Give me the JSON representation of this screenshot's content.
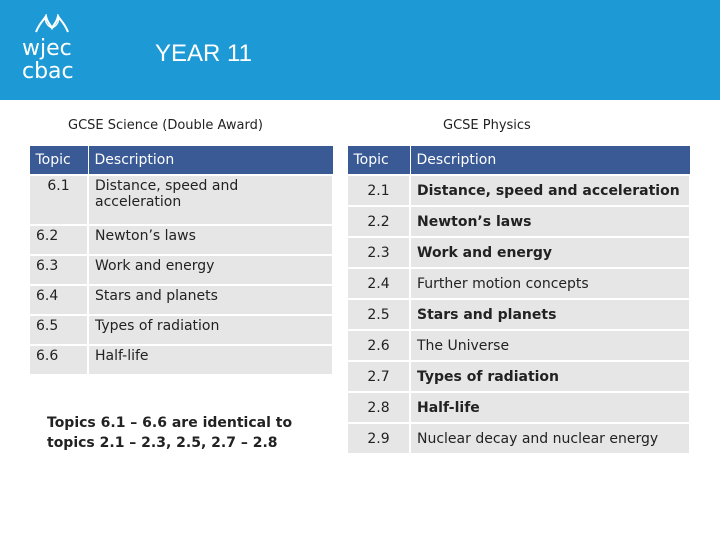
{
  "header": {
    "logo_line1": "wjec",
    "logo_line2": "cbac",
    "title": "YEAR 11",
    "colors": {
      "banner": "#1d9ad6",
      "table_header": "#3a5a95",
      "row_bg": "#e6e6e6"
    }
  },
  "science": {
    "heading": "GCSE Science (Double Award)",
    "col_topic": "Topic",
    "col_desc": "Description",
    "rows": [
      {
        "topic": "6.1",
        "desc": "Distance, speed and acceleration"
      },
      {
        "topic": "6.2",
        "desc": "Newton’s laws"
      },
      {
        "topic": "6.3",
        "desc": "Work and energy"
      },
      {
        "topic": "6.4",
        "desc": "Stars and planets"
      },
      {
        "topic": "6.5",
        "desc": "Types of radiation"
      },
      {
        "topic": "6.6",
        "desc": "Half-life"
      }
    ],
    "note": "Topics 6.1 – 6.6 are identical to topics 2.1 – 2.3, 2.5, 2.7 – 2.8"
  },
  "physics": {
    "heading": "GCSE Physics",
    "col_topic": "Topic",
    "col_desc": "Description",
    "rows": [
      {
        "topic": "2.1",
        "desc": "Distance, speed and acceleration"
      },
      {
        "topic": "2.2",
        "desc": "Newton’s laws"
      },
      {
        "topic": "2.3",
        "desc": "Work and energy"
      },
      {
        "topic": "2.4",
        "desc": "Further motion concepts"
      },
      {
        "topic": "2.5",
        "desc": "Stars and planets"
      },
      {
        "topic": "2.6",
        "desc": "The Universe"
      },
      {
        "topic": "2.7",
        "desc": "Types of radiation"
      },
      {
        "topic": "2.8",
        "desc": "Half-life"
      },
      {
        "topic": "2.9",
        "desc": "Nuclear decay and nuclear energy"
      }
    ]
  }
}
